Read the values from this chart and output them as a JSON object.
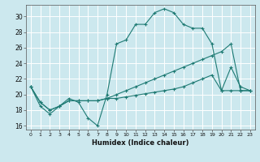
{
  "xlabel": "Humidex (Indice chaleur)",
  "bg_color": "#cce8ee",
  "grid_color": "#ffffff",
  "line_color": "#1e7a73",
  "xlim": [
    -0.5,
    23.5
  ],
  "ylim": [
    15.5,
    31.5
  ],
  "xticks": [
    0,
    1,
    2,
    3,
    4,
    5,
    6,
    7,
    8,
    9,
    10,
    11,
    12,
    13,
    14,
    15,
    16,
    17,
    18,
    19,
    20,
    21,
    22,
    23
  ],
  "yticks": [
    16,
    18,
    20,
    22,
    24,
    26,
    28,
    30
  ],
  "series": [
    [
      21.0,
      18.5,
      17.5,
      18.5,
      19.5,
      19.0,
      17.0,
      16.0,
      20.0,
      26.5,
      27.0,
      29.0,
      29.0,
      30.5,
      31.0,
      30.5,
      29.0,
      28.5,
      28.5,
      26.5,
      20.5,
      23.5,
      21.0,
      20.5
    ],
    [
      21.0,
      19.0,
      18.0,
      18.5,
      19.2,
      19.2,
      19.2,
      19.2,
      19.5,
      20.0,
      20.5,
      21.0,
      21.5,
      22.0,
      22.5,
      23.0,
      23.5,
      24.0,
      24.5,
      25.0,
      25.5,
      26.5,
      20.5,
      20.5
    ],
    [
      21.0,
      19.0,
      18.0,
      18.5,
      19.2,
      19.2,
      19.2,
      19.2,
      19.5,
      19.5,
      19.7,
      19.9,
      20.1,
      20.3,
      20.5,
      20.7,
      21.0,
      21.5,
      22.0,
      22.5,
      20.5,
      20.5,
      20.5,
      20.5
    ]
  ]
}
